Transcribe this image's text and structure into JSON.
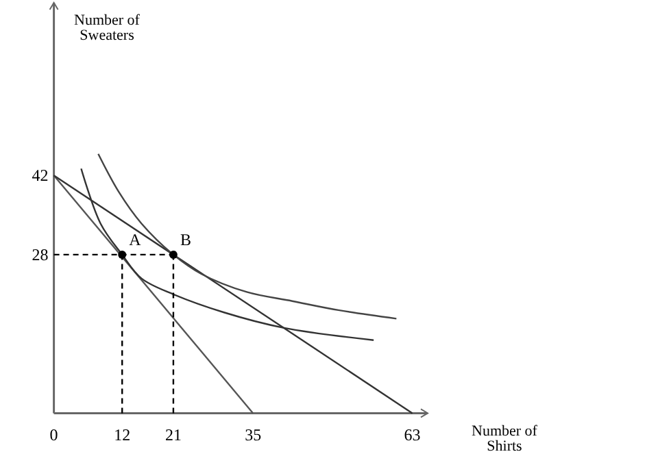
{
  "chart_data": {
    "type": "line",
    "xlabel": "Number of Shirts",
    "ylabel": "Number of Sweaters",
    "xlim": [
      0,
      65.7
    ],
    "ylim": [
      0,
      72.5
    ],
    "xticks": [
      0,
      12,
      21,
      35,
      63
    ],
    "yticks": [
      28,
      42
    ],
    "grid": false,
    "series": [
      {
        "color": "#555555",
        "x": [
          0,
          35
        ],
        "values": [
          42,
          0
        ]
      },
      {
        "color": "#333333",
        "x": [
          0,
          63
        ],
        "values": [
          42,
          0
        ]
      },
      {
        "color": "#333333",
        "x": [
          4.8,
          8.2,
          12,
          15.4,
          21,
          29.9,
          40.3,
          56.2
        ],
        "values": [
          43.2,
          33.5,
          28,
          23.8,
          21,
          17.8,
          15.1,
          12.9
        ]
      },
      {
        "color": "#444444",
        "x": [
          7.8,
          11.4,
          15.4,
          21,
          25.9,
          33.9,
          41.9,
          50,
          60.2
        ],
        "values": [
          45.8,
          39.1,
          33.5,
          28,
          24.6,
          21.4,
          19.8,
          18.2,
          16.7
        ]
      },
      {
        "color": "#000000",
        "line_style": "dashed",
        "x": [
          0,
          21
        ],
        "values": [
          28,
          28
        ]
      },
      {
        "color": "#000000",
        "line_style": "dashed",
        "x": [
          12,
          12
        ],
        "values": [
          0,
          28
        ]
      },
      {
        "color": "#000000",
        "line_style": "dashed",
        "x": [
          21,
          21
        ],
        "values": [
          0,
          28
        ]
      },
      {
        "type": "scatter",
        "marker": "circle",
        "color": "#000000",
        "x": [
          12,
          21
        ],
        "values": [
          28,
          28
        ]
      }
    ],
    "annotations": [
      {
        "text": "A",
        "x": 12,
        "y": 28
      },
      {
        "text": "B",
        "x": 21,
        "y": 28
      }
    ]
  }
}
